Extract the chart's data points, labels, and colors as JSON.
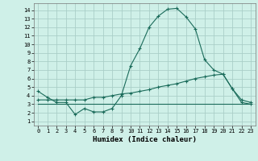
{
  "xlabel": "Humidex (Indice chaleur)",
  "background_color": "#cff0e8",
  "grid_color": "#aacfc8",
  "line_color": "#1a6b5a",
  "xlim": [
    -0.5,
    23.5
  ],
  "ylim": [
    0.5,
    14.8
  ],
  "x_ticks": [
    0,
    1,
    2,
    3,
    4,
    5,
    6,
    7,
    8,
    9,
    10,
    11,
    12,
    13,
    14,
    15,
    16,
    17,
    18,
    19,
    20,
    21,
    22,
    23
  ],
  "y_ticks": [
    1,
    2,
    3,
    4,
    5,
    6,
    7,
    8,
    9,
    10,
    11,
    12,
    13,
    14
  ],
  "series1_x": [
    0,
    1,
    2,
    3,
    4,
    5,
    6,
    7,
    8,
    9,
    10,
    11,
    12,
    13,
    14,
    15,
    16,
    17,
    18,
    19,
    20,
    21,
    22,
    23
  ],
  "series1_y": [
    4.5,
    3.8,
    3.2,
    3.2,
    1.8,
    2.5,
    2.1,
    2.1,
    2.5,
    4.0,
    7.5,
    9.5,
    12.0,
    13.3,
    14.1,
    14.2,
    13.2,
    11.8,
    8.2,
    7.0,
    6.5,
    4.8,
    3.2,
    3.0
  ],
  "series2_x": [
    0,
    1,
    2,
    3,
    4,
    5,
    6,
    7,
    8,
    9,
    10,
    11,
    12,
    13,
    14,
    15,
    16,
    17,
    18,
    19,
    20,
    21,
    22,
    23
  ],
  "series2_y": [
    3.0,
    3.0,
    3.0,
    3.0,
    3.0,
    3.0,
    3.0,
    3.0,
    3.0,
    3.0,
    3.0,
    3.0,
    3.0,
    3.0,
    3.0,
    3.0,
    3.0,
    3.0,
    3.0,
    3.0,
    3.0,
    3.0,
    3.0,
    3.0
  ],
  "series3_x": [
    0,
    1,
    2,
    3,
    4,
    5,
    6,
    7,
    8,
    9,
    10,
    11,
    12,
    13,
    14,
    15,
    16,
    17,
    18,
    19,
    20,
    21,
    22,
    23
  ],
  "series3_y": [
    3.5,
    3.5,
    3.5,
    3.5,
    3.5,
    3.5,
    3.8,
    3.8,
    4.0,
    4.2,
    4.3,
    4.5,
    4.7,
    5.0,
    5.2,
    5.4,
    5.7,
    6.0,
    6.2,
    6.4,
    6.5,
    4.8,
    3.5,
    3.2
  ]
}
